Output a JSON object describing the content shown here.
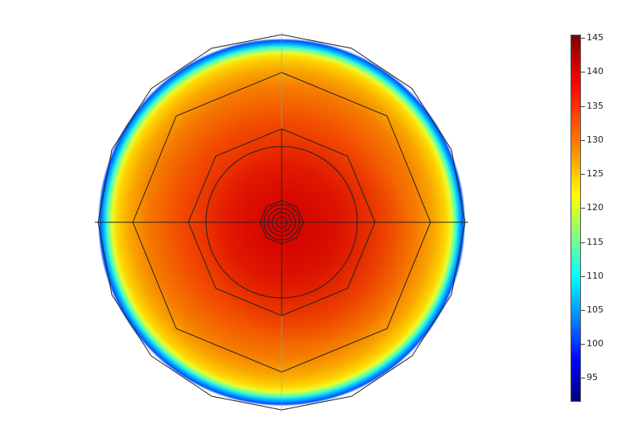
{
  "colorbar": {
    "min": 91.5,
    "max": 145.5,
    "ticks": [
      "145",
      "140",
      "135",
      "130",
      "125",
      "120",
      "115",
      "110",
      "105",
      "100",
      "95"
    ]
  },
  "colors": {
    "scale": [
      "#00007f",
      "#0000ff",
      "#0080ff",
      "#00ffff",
      "#80ff80",
      "#ffff00",
      "#ff8000",
      "#ff0000",
      "#7f0000"
    ],
    "outline": "#222222"
  }
}
